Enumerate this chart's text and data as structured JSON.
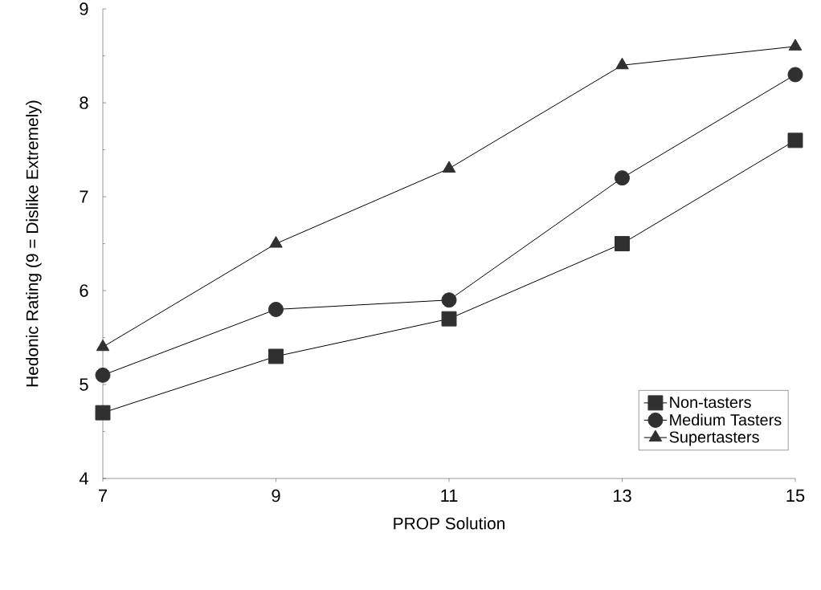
{
  "chart_data": {
    "type": "line",
    "xlabel": "PROP Solution",
    "ylabel": "Hedonic Rating (9 = Dislike Extremely)",
    "x": [
      7,
      9,
      11,
      13,
      15
    ],
    "series": [
      {
        "name": "Non-tasters",
        "color": "#303030",
        "marker": "square",
        "values": [
          4.7,
          5.3,
          5.7,
          6.5,
          7.6
        ]
      },
      {
        "name": "Medium Tasters",
        "color": "#303030",
        "marker": "circle",
        "values": [
          5.1,
          5.8,
          5.9,
          7.2,
          8.3
        ]
      },
      {
        "name": "Supertasters",
        "color": "#303030",
        "marker": "triangle",
        "values": [
          5.4,
          6.5,
          7.3,
          8.4,
          8.6
        ]
      }
    ],
    "xlim": [
      7,
      15
    ],
    "ylim": [
      4,
      9
    ],
    "xticks": [
      7,
      9,
      11,
      13,
      15
    ],
    "yticks": [
      4,
      5,
      6,
      7,
      8,
      9
    ],
    "grid": false,
    "legend": "bottom right",
    "line_style": "solid"
  }
}
